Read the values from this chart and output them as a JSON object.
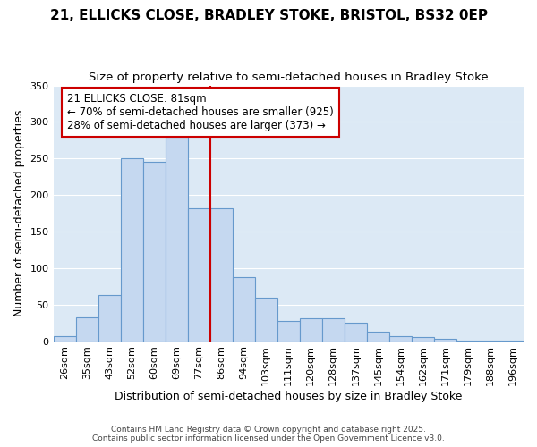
{
  "title": "21, ELLICKS CLOSE, BRADLEY STOKE, BRISTOL, BS32 0EP",
  "subtitle": "Size of property relative to semi-detached houses in Bradley Stoke",
  "xlabel": "Distribution of semi-detached houses by size in Bradley Stoke",
  "ylabel": "Number of semi-detached properties",
  "bar_labels": [
    "26sqm",
    "35sqm",
    "43sqm",
    "52sqm",
    "60sqm",
    "69sqm",
    "77sqm",
    "86sqm",
    "94sqm",
    "103sqm",
    "111sqm",
    "120sqm",
    "128sqm",
    "137sqm",
    "145sqm",
    "154sqm",
    "162sqm",
    "171sqm",
    "179sqm",
    "188sqm",
    "196sqm"
  ],
  "bar_values": [
    7,
    33,
    63,
    250,
    245,
    280,
    182,
    182,
    88,
    60,
    28,
    31,
    31,
    25,
    13,
    7,
    5,
    3,
    1,
    1,
    1
  ],
  "bar_color": "#c5d8f0",
  "bar_edge_color": "#6699cc",
  "vline_color": "#cc0000",
  "annotation_title": "21 ELLICKS CLOSE: 81sqm",
  "annotation_line1": "← 70% of semi-detached houses are smaller (925)",
  "annotation_line2": "28% of semi-detached houses are larger (373) →",
  "annotation_box_color": "#ffffff",
  "annotation_box_edge": "#cc0000",
  "ylim": [
    0,
    350
  ],
  "yticks": [
    0,
    50,
    100,
    150,
    200,
    250,
    300,
    350
  ],
  "fig_bg_color": "#ffffff",
  "plot_bg_color": "#dce9f5",
  "footer": "Contains HM Land Registry data © Crown copyright and database right 2025.\nContains public sector information licensed under the Open Government Licence v3.0.",
  "title_fontsize": 11,
  "subtitle_fontsize": 9.5,
  "axis_label_fontsize": 9,
  "tick_fontsize": 8,
  "annotation_fontsize": 8.5,
  "footer_fontsize": 6.5
}
